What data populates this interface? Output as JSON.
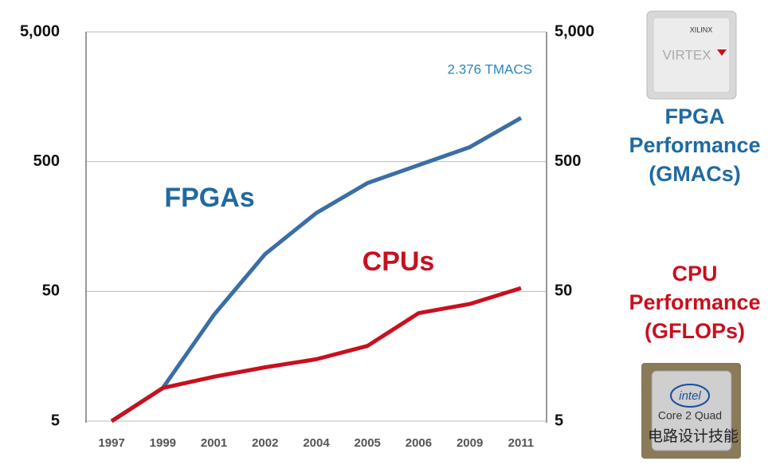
{
  "chart_data": {
    "type": "line",
    "categories": [
      "1997",
      "1999",
      "2001",
      "2002",
      "2004",
      "2005",
      "2006",
      "2009",
      "2011"
    ],
    "series": [
      {
        "name": "FPGAs",
        "color": "#3a6ea5",
        "values": [
          5,
          9,
          33,
          97,
          201,
          342,
          470,
          647,
          1087
        ]
      },
      {
        "name": "CPUs",
        "color": "#c8101e",
        "values": [
          5,
          9,
          11,
          13,
          15,
          19,
          34,
          40,
          53
        ]
      }
    ],
    "ylim": [
      5,
      5000
    ],
    "yticks": [
      5,
      50,
      500,
      {
        "value": 5000,
        "label": "5,000"
      }
    ],
    "log_scale": true,
    "grid": true,
    "right_axis_labels": true,
    "annotation": "2.376 TMACS",
    "side_labels": [
      {
        "lines": [
          "FPGA",
          "Performance",
          "(GMACs)"
        ],
        "color": "#1f6aa0"
      },
      {
        "lines": [
          "CPU",
          "Performance",
          "(GFLOPs)"
        ],
        "color": "#c8101e"
      }
    ]
  },
  "images": {
    "fpga_chip": [
      "XILINX",
      "VIRTEX"
    ],
    "cpu_chip": [
      "intel",
      "Core 2 Quad"
    ]
  },
  "watermark": "电路设计技能"
}
